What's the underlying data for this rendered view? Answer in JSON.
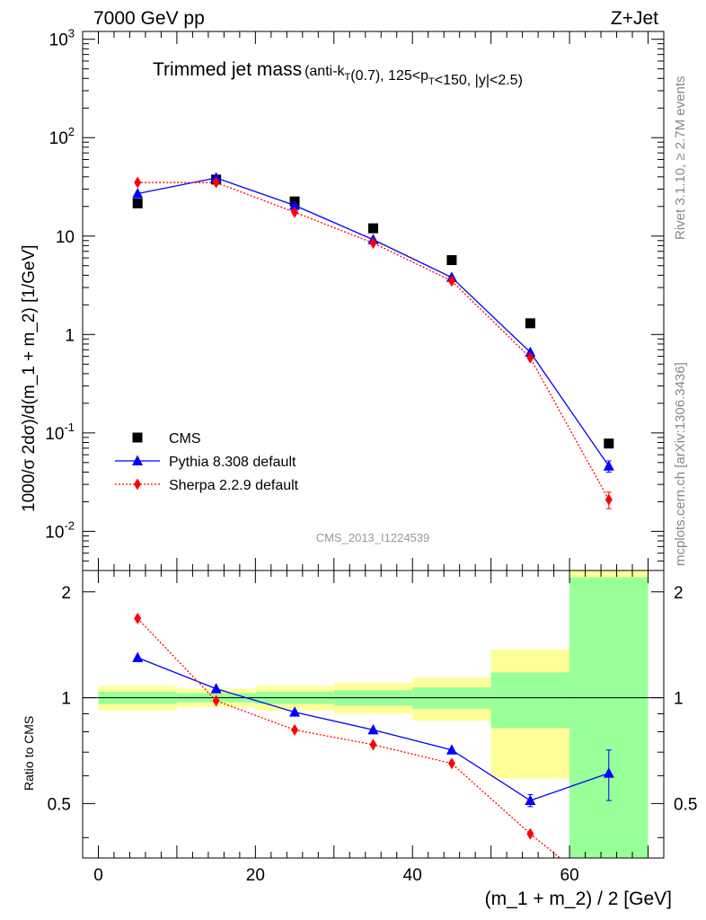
{
  "header": {
    "left": "7000 GeV pp",
    "right": "Z+Jet"
  },
  "side_text": {
    "rivet": "Rivet 3.1.10, ≥ 2.7M events",
    "source": "mcplots.cern.ch [arXiv:1306.3436]"
  },
  "title": {
    "main": "Trimmed jet mass",
    "detail": "(anti-k_T(0.7), 125<p_T<150, |y|<2.5)"
  },
  "analysis_id": "CMS_2013_I1224539",
  "legend": [
    {
      "label": "CMS",
      "marker": "square",
      "color": "#000000"
    },
    {
      "label": "Pythia 8.308 default",
      "marker": "triangle",
      "color": "#0000ff"
    },
    {
      "label": "Sherpa 2.2.9 default",
      "marker": "diamond",
      "color": "#ff0000"
    }
  ],
  "chart_data": [
    {
      "type": "scatter",
      "panel": "main",
      "ylabel": "1000/σ 2dσ)/d(m_1 + m_2) [1/GeV]",
      "yscale": "log",
      "ylim": [
        0.004,
        1200
      ],
      "xlim": [
        -2,
        72
      ],
      "y_tick_labels": [
        "10^-2",
        "10^-1",
        "1",
        "10",
        "10^2",
        "10^3"
      ],
      "x": [
        5,
        15,
        25,
        35,
        45,
        55,
        65
      ],
      "series": [
        {
          "name": "CMS",
          "color": "#000000",
          "style": "markers",
          "values": [
            21.5,
            37.5,
            22.5,
            12.0,
            5.7,
            1.3,
            0.078
          ]
        },
        {
          "name": "Pythia 8.308 default",
          "color": "#0000ff",
          "style": "solid",
          "values": [
            27.0,
            39.0,
            20.5,
            9.2,
            3.8,
            0.66,
            0.046
          ],
          "errors": [
            0,
            0,
            0,
            0,
            0,
            0,
            0.006
          ]
        },
        {
          "name": "Sherpa 2.2.9 default",
          "color": "#ff0000",
          "style": "dotted",
          "values": [
            35.0,
            35.0,
            17.5,
            8.5,
            3.5,
            0.58,
            0.021
          ],
          "errors": [
            0,
            0,
            0,
            0,
            0,
            0,
            0.004
          ]
        }
      ]
    },
    {
      "type": "scatter",
      "panel": "ratio",
      "ylabel": "Ratio to CMS",
      "xlabel": "(m_1 + m_2) / 2 [GeV]",
      "ylim": [
        0.35,
        2.3
      ],
      "xlim": [
        -2,
        72
      ],
      "x_ticks": [
        0,
        20,
        40,
        60
      ],
      "y_ticks": [
        0.5,
        1,
        2
      ],
      "reference": 1,
      "bands": [
        {
          "x0": 0,
          "x1": 10,
          "inner": [
            0.96,
            1.04
          ],
          "outer": [
            0.92,
            1.08
          ]
        },
        {
          "x0": 10,
          "x1": 20,
          "inner": [
            0.97,
            1.03
          ],
          "outer": [
            0.94,
            1.06
          ]
        },
        {
          "x0": 20,
          "x1": 30,
          "inner": [
            0.96,
            1.04
          ],
          "outer": [
            0.92,
            1.08
          ]
        },
        {
          "x0": 30,
          "x1": 40,
          "inner": [
            0.95,
            1.05
          ],
          "outer": [
            0.9,
            1.1
          ]
        },
        {
          "x0": 40,
          "x1": 50,
          "inner": [
            0.93,
            1.07
          ],
          "outer": [
            0.86,
            1.14
          ]
        },
        {
          "x0": 50,
          "x1": 60,
          "inner": [
            0.82,
            1.18
          ],
          "outer": [
            0.59,
            1.37
          ]
        },
        {
          "x0": 60,
          "x1": 70,
          "inner": [
            0.33,
            2.2
          ],
          "outer": [
            0.33,
            2.6
          ]
        }
      ],
      "band_colors": {
        "inner": "#99ff99",
        "outer": "#ffff99"
      },
      "x": [
        5,
        15,
        25,
        35,
        45,
        55,
        65
      ],
      "series": [
        {
          "name": "Pythia 8.308 default",
          "color": "#0000ff",
          "style": "solid",
          "values": [
            1.3,
            1.06,
            0.91,
            0.81,
            0.71,
            0.51,
            0.61
          ],
          "errors": [
            0,
            0,
            0,
            0,
            0,
            0.02,
            0.1
          ]
        },
        {
          "name": "Sherpa 2.2.9 default",
          "color": "#ff0000",
          "style": "dotted",
          "values": [
            1.68,
            0.98,
            0.81,
            0.735,
            0.65,
            0.41,
            0.27
          ]
        }
      ]
    }
  ]
}
